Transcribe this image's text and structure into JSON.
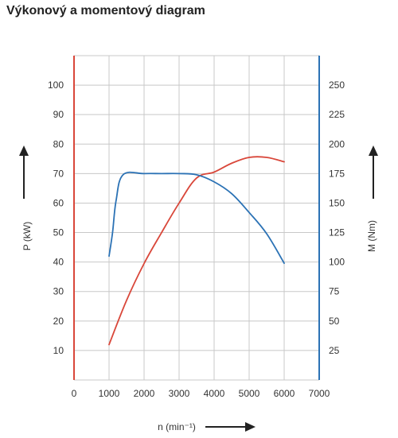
{
  "chart_data": {
    "type": "line",
    "title": "Výkonový a momentový diagram",
    "xlabel": "n (min⁻¹)",
    "ylabel_left": "P (kW)",
    "ylabel_right": "M (Nm)",
    "x_ticks": [
      "0",
      "1000",
      "2000",
      "3000",
      "4000",
      "5000",
      "6000",
      "7000"
    ],
    "y_left_ticks": [
      "10",
      "20",
      "30",
      "40",
      "50",
      "60",
      "70",
      "80",
      "90",
      "100"
    ],
    "y_right_ticks": [
      "25",
      "50",
      "75",
      "100",
      "125",
      "150",
      "175",
      "200",
      "225",
      "250"
    ],
    "xlim": [
      0,
      7000
    ],
    "ylim_left": [
      0,
      110
    ],
    "ylim_right": [
      0,
      275
    ],
    "grid": true,
    "colors": {
      "power": "#d9473a",
      "torque": "#2b72b5",
      "left_axis": "#d9473a",
      "right_axis": "#2b72b5",
      "grid": "#c8c8c8"
    },
    "series": [
      {
        "axis": "left",
        "color": "#d9473a",
        "x": [
          1000,
          1500,
          2000,
          2500,
          3000,
          3500,
          4000,
          4500,
          5000,
          5500,
          6000
        ],
        "y": [
          12,
          27,
          39.5,
          50,
          60,
          68.5,
          70.5,
          73.5,
          75.5,
          75.5,
          74
        ]
      },
      {
        "axis": "right",
        "color": "#2b72b5",
        "x": [
          1000,
          1100,
          1200,
          1400,
          2000,
          2500,
          3000,
          3500,
          4000,
          4500,
          5000,
          5500,
          6000
        ],
        "y": [
          105,
          125,
          152,
          174,
          175,
          175,
          175,
          174,
          168,
          158,
          142,
          124,
          99
        ]
      }
    ]
  }
}
